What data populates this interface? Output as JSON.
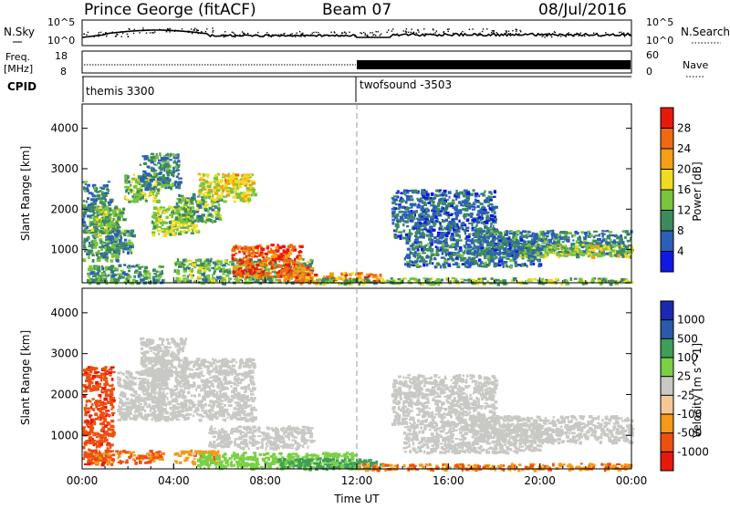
{
  "header": {
    "station": "Prince George (fitACF)",
    "beam": "Beam 07",
    "date": "08/Jul/2016"
  },
  "noise_panel": {
    "left_label": "N.Sky",
    "left_ticks": [
      "10^5",
      "10^0"
    ],
    "right_label": "N.Search",
    "right_ticks": [
      "10^5",
      "10^0"
    ]
  },
  "freq_panel": {
    "left_label_1": "Freq.",
    "left_label_2": "[MHz]",
    "left_ticks": [
      "18",
      "8"
    ],
    "right_label": "Nave",
    "right_ticks": [
      "60",
      "0"
    ]
  },
  "cpid_panel": {
    "label": "CPID",
    "entries": [
      {
        "name": "themis 3300",
        "start_hour": 0
      },
      {
        "name": "twofsound -3503",
        "start_hour": 12
      }
    ]
  },
  "colors": {
    "power_scale": [
      "#1018e6",
      "#2c5fb8",
      "#3c8a5e",
      "#78c43c",
      "#f0dc1e",
      "#f3a014",
      "#ee6a10",
      "#e8180c"
    ],
    "velocity_scale": [
      "#e8180c",
      "#ee5010",
      "#f39a18",
      "#f4c896",
      "#c8c8c4",
      "#79d044",
      "#3f9e58",
      "#2b5aa8",
      "#1a2ab0"
    ],
    "ground_scatter": "#c8c8c4"
  },
  "chart_data": [
    {
      "type": "heatmap",
      "name": "power",
      "xlabel": "",
      "ylabel": "Slant Range [km]",
      "xlim": [
        0,
        24
      ],
      "ylim": [
        180,
        4600
      ],
      "yticks": [
        1000,
        2000,
        3000,
        4000
      ],
      "colorbar_label": "Power [dB]",
      "colorbar_range": [
        0,
        32
      ],
      "colorbar_ticks": [
        4,
        8,
        12,
        16,
        20,
        24,
        28
      ],
      "vline_hour": 12,
      "regions": [
        {
          "t": [
            0.0,
            1.2
          ],
          "r": [
            1700,
            2700
          ],
          "v": 9
        },
        {
          "t": [
            0.0,
            1.5
          ],
          "r": [
            750,
            1700
          ],
          "v": 11
        },
        {
          "t": [
            0.3,
            1.8
          ],
          "r": [
            1400,
            2100
          ],
          "v": 13
        },
        {
          "t": [
            1.0,
            2.2
          ],
          "r": [
            950,
            1500
          ],
          "v": 9
        },
        {
          "t": [
            1.8,
            3.3
          ],
          "r": [
            2200,
            2900
          ],
          "v": 14
        },
        {
          "t": [
            2.5,
            4.2
          ],
          "r": [
            2500,
            3400
          ],
          "v": 9
        },
        {
          "t": [
            3.0,
            5.0
          ],
          "r": [
            1400,
            2100
          ],
          "v": 15
        },
        {
          "t": [
            4.0,
            6.0
          ],
          "r": [
            1700,
            2400
          ],
          "v": 12
        },
        {
          "t": [
            5.0,
            7.5
          ],
          "r": [
            2200,
            2900
          ],
          "v": 17
        },
        {
          "t": [
            6.2,
            7.3
          ],
          "r": [
            2600,
            2900
          ],
          "v": 21
        },
        {
          "t": [
            0.2,
            3.5
          ],
          "r": [
            200,
            650
          ],
          "v": 11
        },
        {
          "t": [
            4.0,
            10.0
          ],
          "r": [
            200,
            800
          ],
          "v": 12
        },
        {
          "t": [
            6.5,
            9.5
          ],
          "r": [
            350,
            1150
          ],
          "v": 27
        },
        {
          "t": [
            8.5,
            10.0
          ],
          "r": [
            220,
            650
          ],
          "v": 25
        },
        {
          "t": [
            9.5,
            13.0
          ],
          "r": [
            200,
            450
          ],
          "v": 24
        },
        {
          "t": [
            10.0,
            24.0
          ],
          "r": [
            180,
            320
          ],
          "v": 13
        },
        {
          "t": [
            13.5,
            18.0
          ],
          "r": [
            1300,
            2500
          ],
          "v": 7
        },
        {
          "t": [
            17.0,
            24.0
          ],
          "r": [
            900,
            1500
          ],
          "v": 9
        },
        {
          "t": [
            19.0,
            24.0
          ],
          "r": [
            850,
            1150
          ],
          "v": 16
        },
        {
          "t": [
            14.0,
            20.0
          ],
          "r": [
            600,
            1300
          ],
          "v": 8
        }
      ]
    },
    {
      "type": "heatmap",
      "name": "velocity",
      "xlabel": "Time UT",
      "ylabel": "Slant Range [km]",
      "xlim": [
        0,
        24
      ],
      "ylim": [
        180,
        4600
      ],
      "xticks": [
        "00:00",
        "04:00",
        "08:00",
        "12:00",
        "16:00",
        "20:00",
        "00:00"
      ],
      "yticks": [
        1000,
        2000,
        3000,
        4000
      ],
      "colorbar_label": "Velocity [m s^-1]",
      "colorbar_ticks": [
        1000,
        500,
        100,
        25,
        -25,
        -100,
        -500,
        -1000
      ],
      "vline_hour": 12,
      "regions": [
        {
          "t": [
            0.0,
            1.3
          ],
          "r": [
            300,
            2700
          ],
          "v": -400
        },
        {
          "t": [
            0.2,
            3.5
          ],
          "r": [
            350,
            650
          ],
          "v": -120
        },
        {
          "t": [
            1.5,
            3.5
          ],
          "r": [
            1400,
            2600
          ],
          "v": 0
        },
        {
          "t": [
            2.5,
            4.5
          ],
          "r": [
            2500,
            3400
          ],
          "v": 0
        },
        {
          "t": [
            3.0,
            7.5
          ],
          "r": [
            1400,
            2900
          ],
          "v": 0
        },
        {
          "t": [
            4.0,
            6.0
          ],
          "r": [
            350,
            650
          ],
          "v": -80
        },
        {
          "t": [
            5.5,
            10.0
          ],
          "r": [
            700,
            1250
          ],
          "v": 0
        },
        {
          "t": [
            5.0,
            12.0
          ],
          "r": [
            220,
            600
          ],
          "v": 60
        },
        {
          "t": [
            8.5,
            13.0
          ],
          "r": [
            200,
            450
          ],
          "v": 150
        },
        {
          "t": [
            13.5,
            18.0
          ],
          "r": [
            1300,
            2500
          ],
          "v": 0
        },
        {
          "t": [
            17.0,
            24.0
          ],
          "r": [
            850,
            1500
          ],
          "v": 0
        },
        {
          "t": [
            14.0,
            20.0
          ],
          "r": [
            600,
            1300
          ],
          "v": 0
        },
        {
          "t": [
            12.0,
            24.0
          ],
          "r": [
            180,
            330
          ],
          "v": -90
        }
      ]
    }
  ]
}
